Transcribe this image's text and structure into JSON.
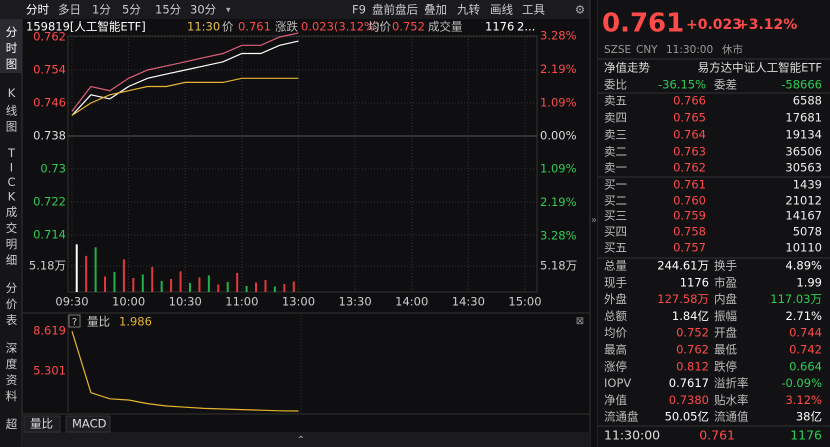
{
  "toolbar": {
    "left": [
      "分时",
      "多日",
      "1分",
      "5分",
      "15分",
      "30分"
    ],
    "right": [
      "F9",
      "盘前盘后",
      "叠加",
      "九转",
      "画线",
      "工具"
    ]
  },
  "side_tabs": [
    "分时图",
    "K线图",
    "TICK",
    "成交明细",
    "分价表",
    "深度资料",
    "超"
  ],
  "info_line": [
    {
      "text": "159819[人工智能ETF]",
      "color": "#ffffff"
    },
    {
      "text": "11:30",
      "color": "#e6c04a"
    },
    {
      "text": "价",
      "color": "#bdbdbd"
    },
    {
      "text": "0.761",
      "color": "#ff4a4a"
    },
    {
      "text": "涨跌",
      "color": "#bdbdbd"
    },
    {
      "text": "0.023(3.12%)",
      "color": "#ff4a4a"
    },
    {
      "text": "均价",
      "color": "#bdbdbd"
    },
    {
      "text": "0.752",
      "color": "#ff4a4a"
    },
    {
      "text": "成交量",
      "color": "#bdbdbd"
    },
    {
      "text": "1176",
      "color": "#ffffff"
    },
    {
      "text": "2...",
      "color": "#ffffff"
    }
  ],
  "chart_data": [
    {
      "type": "line",
      "grid": true,
      "xlim": [
        0,
        240
      ],
      "xticks": [
        {
          "value": 0,
          "label": "09:30"
        },
        {
          "value": 30,
          "label": "10:00"
        },
        {
          "value": 60,
          "label": "10:30"
        },
        {
          "value": 90,
          "label": "11:00"
        },
        {
          "value": 120,
          "label": "13:00"
        },
        {
          "value": 150,
          "label": "13:30"
        },
        {
          "value": 180,
          "label": "14:00"
        },
        {
          "value": 210,
          "label": "14:30"
        },
        {
          "value": 240,
          "label": "15:00"
        }
      ],
      "ylim": [
        0.7002,
        0.7637
      ],
      "yticks": [
        0.762,
        0.754,
        0.746,
        0.738,
        0.73,
        0.722,
        0.714
      ],
      "y2lim": [
        -5.12,
        3.48
      ],
      "y2ticks": [
        {
          "value": 3.28,
          "label": "3.28%"
        },
        {
          "value": 2.19,
          "label": "2.19%"
        },
        {
          "value": 1.09,
          "label": "1.09%"
        },
        {
          "value": 0,
          "label": "0.00%"
        },
        {
          "value": -1.09,
          "label": "1.09%"
        },
        {
          "value": -2.19,
          "label": "2.19%"
        },
        {
          "value": -3.28,
          "label": "3.28%"
        }
      ],
      "x": [
        0,
        10,
        20,
        30,
        40,
        50,
        60,
        70,
        80,
        90,
        100,
        110,
        120
      ],
      "series": [
        {
          "color": "#e0607a",
          "values": [
            0.744,
            0.75,
            0.749,
            0.752,
            0.754,
            0.755,
            0.756,
            0.757,
            0.758,
            0.76,
            0.76,
            0.762,
            0.763
          ]
        },
        {
          "color": "#ffffff",
          "values": [
            0.743,
            0.748,
            0.747,
            0.75,
            0.752,
            0.753,
            0.754,
            0.755,
            0.756,
            0.758,
            0.758,
            0.76,
            0.761
          ]
        },
        {
          "color": "#e6b530",
          "values": [
            0.743,
            0.746,
            0.748,
            0.749,
            0.75,
            0.75,
            0.751,
            0.751,
            0.751,
            0.752,
            0.752,
            0.752,
            0.752
          ]
        }
      ],
      "volume": {
        "ylim": [
          0,
          10.96
        ],
        "yticks": [
          {
            "value": 5.18,
            "label": "5.18万"
          }
        ],
        "x": [
          2.5,
          7.5,
          12.5,
          17.5,
          22.5,
          27.5,
          32.5,
          37.5,
          42.5,
          47.5,
          52.5,
          57.5,
          62.5,
          67.5,
          72.5,
          77.5,
          82.5,
          87.5,
          92.5,
          97.5,
          102.5,
          107.5,
          112.5,
          117.5
        ],
        "values": [
          9.5,
          7.2,
          8.9,
          3.1,
          4.0,
          6.5,
          2.8,
          3.5,
          5.0,
          2.2,
          2.6,
          4.1,
          1.8,
          2.9,
          3.3,
          1.5,
          2.0,
          3.8,
          1.2,
          1.9,
          2.4,
          1.1,
          1.6,
          2.1
        ],
        "colors": [
          "#ffffff",
          "#e03a3a",
          "#22b14c",
          "#e03a3a",
          "#22b14c",
          "#e03a3a",
          "#e03a3a",
          "#22b14c",
          "#e03a3a",
          "#22b14c",
          "#e03a3a",
          "#e03a3a",
          "#22b14c",
          "#e03a3a",
          "#22b14c",
          "#e03a3a",
          "#22b14c",
          "#e03a3a",
          "#22b14c",
          "#e03a3a",
          "#e03a3a",
          "#22b14c",
          "#e03a3a",
          "#e03a3a"
        ]
      }
    },
    {
      "type": "line",
      "help": "?",
      "xlim": [
        0,
        240
      ],
      "ylim": [
        1.986,
        9.2
      ],
      "yticks": [
        8.619,
        5.301
      ],
      "x": [
        0,
        10,
        20,
        30,
        40,
        50,
        60,
        70,
        80,
        90,
        100,
        110,
        120
      ],
      "series": [
        {
          "name": "量比",
          "color": "#e6b530",
          "values": [
            8.6,
            3.5,
            3.0,
            2.9,
            2.6,
            2.4,
            2.3,
            2.2,
            2.15,
            2.1,
            2.05,
            2.0,
            1.986
          ]
        }
      ]
    }
  ],
  "sub_tabs": [
    "量比",
    "MACD"
  ],
  "quote": {
    "price": "0.761",
    "change": "+0.023",
    "change_pct": "+3.12%",
    "meta": [
      "SZSE",
      "CNY",
      "11:30:00",
      "休市"
    ],
    "nav_trend": "净值走势",
    "fund_name": "易方达中证人工智能ETF",
    "bid_ratio": [
      "委比",
      "-36.15%",
      "委差",
      "-58666"
    ],
    "asks": [
      [
        "卖五",
        "0.766",
        "6588"
      ],
      [
        "卖四",
        "0.765",
        "17681"
      ],
      [
        "卖三",
        "0.764",
        "19134"
      ],
      [
        "卖二",
        "0.763",
        "36506"
      ],
      [
        "卖一",
        "0.762",
        "30563"
      ]
    ],
    "bids": [
      [
        "买一",
        "0.761",
        "1439"
      ],
      [
        "买二",
        "0.760",
        "21012"
      ],
      [
        "买三",
        "0.759",
        "14167"
      ],
      [
        "买四",
        "0.758",
        "5078"
      ],
      [
        "买五",
        "0.757",
        "10110"
      ]
    ],
    "stats": [
      {
        "cells": [
          "总量",
          "244.61万",
          "换手",
          "4.89%"
        ],
        "colors": [
          "#ffffff",
          "#ffffff"
        ]
      },
      {
        "cells": [
          "现手",
          "1176",
          "市盈",
          "1.99"
        ],
        "colors": [
          "#ffffff",
          "#ffffff"
        ]
      },
      {
        "cells": [
          "外盘",
          "127.58万",
          "内盘",
          "117.03万"
        ],
        "colors": [
          "#ff4a4a",
          "#2ecc55"
        ]
      },
      {
        "cells": [
          "总额",
          "1.84亿",
          "振幅",
          "2.71%"
        ],
        "colors": [
          "#ffffff",
          "#ffffff"
        ]
      },
      {
        "cells": [
          "均价",
          "0.752",
          "开盘",
          "0.744"
        ],
        "colors": [
          "#ff4a4a",
          "#ff4a4a"
        ]
      },
      {
        "cells": [
          "最高",
          "0.762",
          "最低",
          "0.742"
        ],
        "colors": [
          "#ff4a4a",
          "#ff4a4a"
        ]
      },
      {
        "cells": [
          "涨停",
          "0.812",
          "跌停",
          "0.664"
        ],
        "colors": [
          "#ff4a4a",
          "#2ecc55"
        ]
      },
      {
        "cells": [
          "IOPV",
          "0.7617",
          "溢折率",
          "-0.09%"
        ],
        "colors": [
          "#ffffff",
          "#2ecc55"
        ]
      },
      {
        "cells": [
          "净值",
          "0.7380",
          "贴水率",
          "3.12%"
        ],
        "colors": [
          "#ff4a4a",
          "#ff4a4a"
        ]
      },
      {
        "cells": [
          "流通盘",
          "50.05亿",
          "流通值",
          "38亿"
        ],
        "colors": [
          "#ffffff",
          "#ffffff"
        ]
      }
    ],
    "footer": [
      "11:30:00",
      "0.761",
      "1176"
    ]
  }
}
